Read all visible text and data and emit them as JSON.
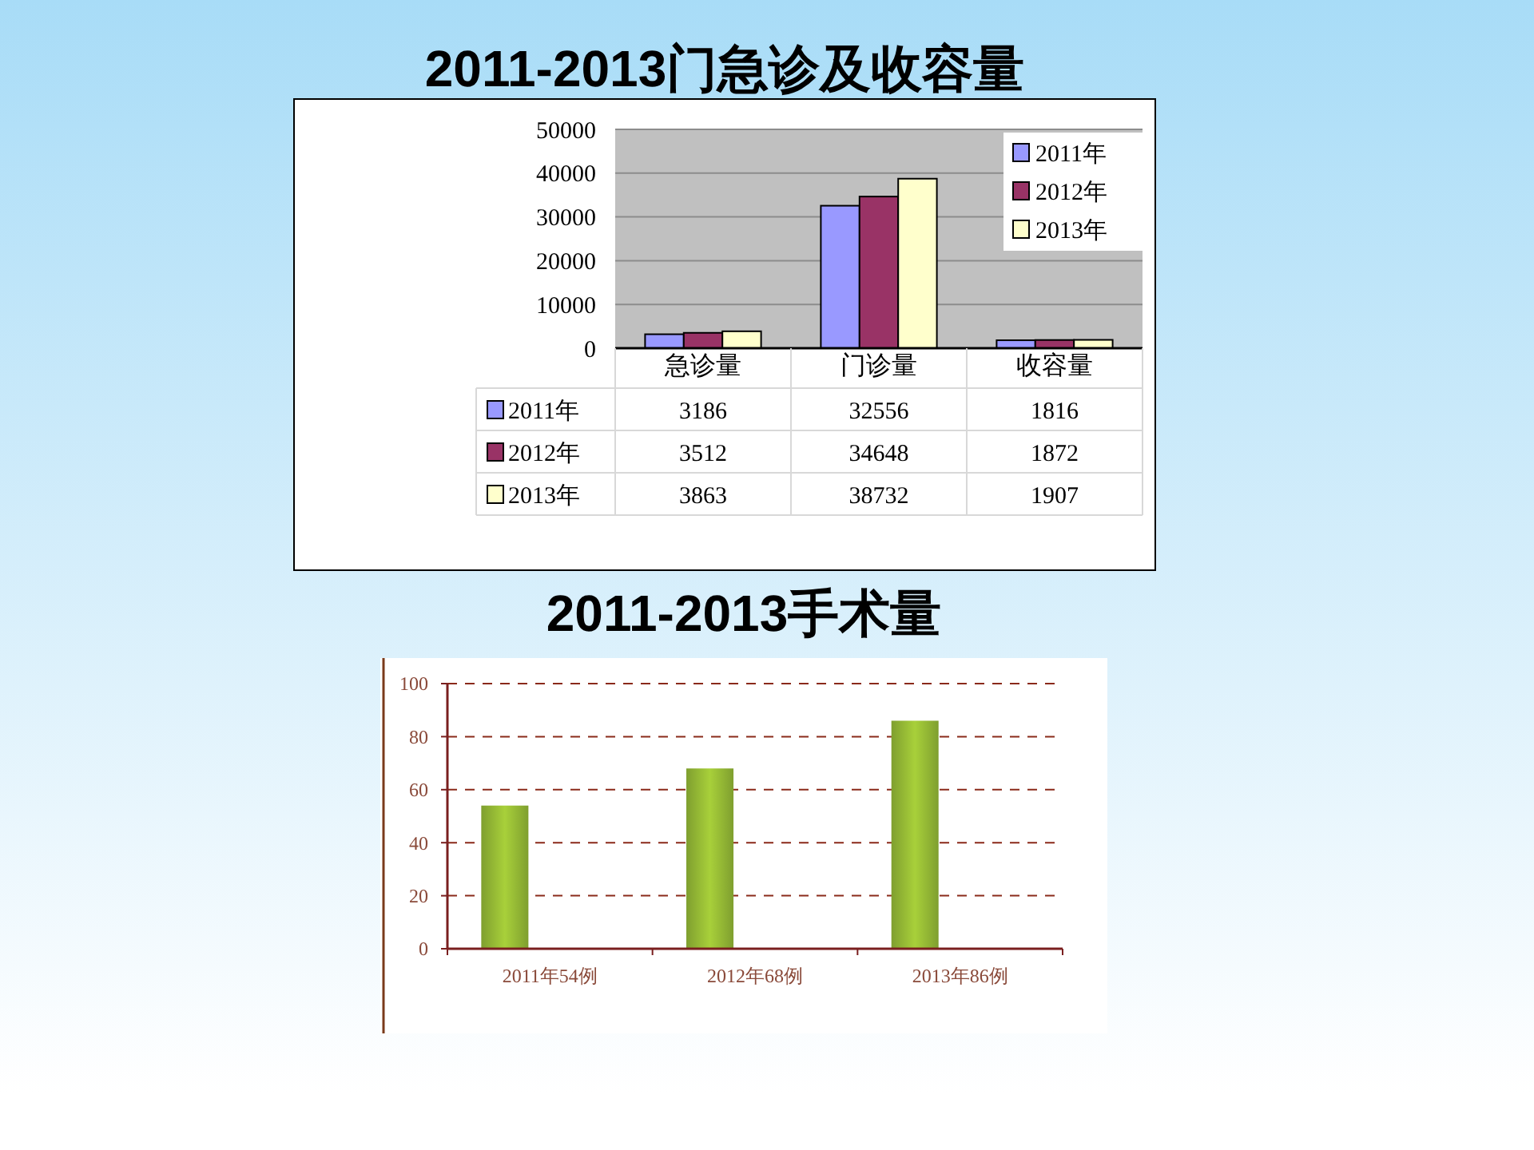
{
  "chart_data": [
    {
      "type": "bar",
      "title": "2011-2013门急诊及收容量",
      "categories": [
        "急诊量",
        "门诊量",
        "收容量"
      ],
      "series": [
        {
          "name": "2011年",
          "color": "#9999ff",
          "values": [
            3186,
            32556,
            1816
          ]
        },
        {
          "name": "2012年",
          "color": "#993366",
          "values": [
            3512,
            34648,
            1872
          ]
        },
        {
          "name": "2013年",
          "color": "#ffffcc",
          "values": [
            3863,
            38732,
            1907
          ]
        }
      ],
      "ylim": [
        0,
        50000
      ],
      "yticks": [
        0,
        10000,
        20000,
        30000,
        40000,
        50000
      ],
      "grid": "y",
      "legend": "top right",
      "data_labels": true
    },
    {
      "type": "bar",
      "title": "2011-2013手术量",
      "categories": [
        "2011年54例",
        "2012年68例",
        "2013年86例"
      ],
      "values": [
        54,
        68,
        86
      ],
      "color": "#7f9f2f",
      "ylim": [
        0,
        100
      ],
      "yticks": [
        0,
        20,
        40,
        60,
        80,
        100
      ],
      "grid": "y"
    }
  ]
}
